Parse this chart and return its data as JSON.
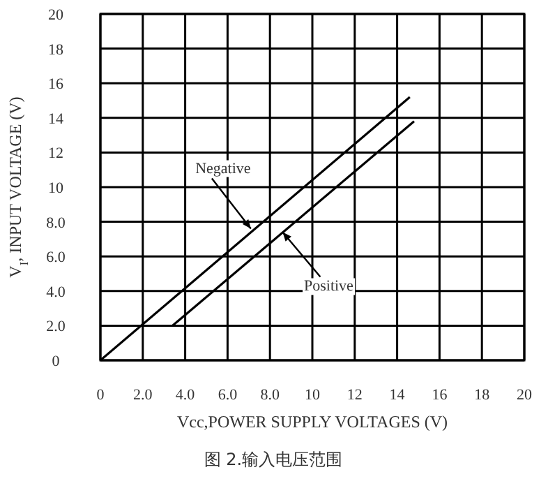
{
  "chart_data": {
    "type": "line",
    "xlabel": "Vcc,POWER SUPPLY VOLTAGES (V)",
    "ylabel": "V$_{I}$, INPUT VOLTAGE (V)",
    "series": [
      {
        "color": "#000000",
        "x": [
          0,
          14.6
        ],
        "values": [
          0,
          15.2
        ]
      },
      {
        "color": "#000000",
        "x": [
          3.4,
          14.8
        ],
        "values": [
          2.0,
          13.8
        ]
      }
    ],
    "xlim": [
      0,
      20
    ],
    "ylim": [
      0,
      20
    ],
    "xticks": [
      0,
      {
        "value": 2,
        "label": "2.0"
      },
      {
        "value": 4,
        "label": "4.0"
      },
      {
        "value": 6,
        "label": "6.0"
      },
      {
        "value": 8,
        "label": "8.0"
      },
      10,
      12,
      14,
      16,
      18,
      20
    ],
    "yticks": [
      0,
      {
        "value": 2,
        "label": "2.0"
      },
      {
        "value": 4,
        "label": "4.0"
      },
      {
        "value": 6,
        "label": "6.0"
      },
      {
        "value": 8,
        "label": "8.0"
      },
      10,
      12,
      14,
      16,
      18,
      20
    ],
    "grid": true,
    "marker": "none",
    "line_style": "solid",
    "annotations": [
      {
        "text": "Negative",
        "x": 7.1,
        "y": 7.6
      },
      {
        "text": "Positive",
        "x": 8.6,
        "y": 7.4
      },
      "图 2.输入电压范围"
    ]
  }
}
